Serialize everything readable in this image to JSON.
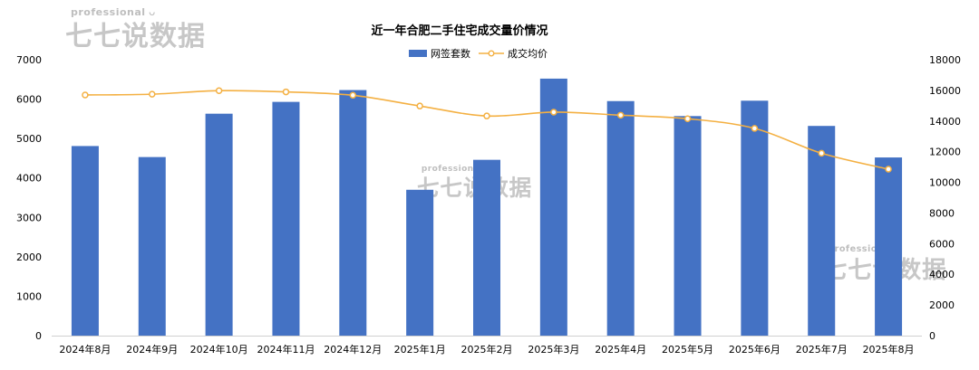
{
  "watermark": {
    "top_text": "professional",
    "brand_text": "七七说数据"
  },
  "chart_data": {
    "type": "bar",
    "title": "近一年合肥二手住宅成交量价情况",
    "categories": [
      "2024年8月",
      "2024年9月",
      "2024年10月",
      "2024年11月",
      "2024年12月",
      "2025年1月",
      "2025年2月",
      "2025年3月",
      "2025年4月",
      "2025年5月",
      "2025年6月",
      "2025年7月",
      "2025年8月"
    ],
    "series": [
      {
        "name": "网签套数",
        "type": "bar",
        "axis": "left",
        "color": "#4472C4",
        "values": [
          4810,
          4530,
          5630,
          5930,
          6230,
          3700,
          4460,
          6520,
          5950,
          5570,
          5960,
          5320,
          4520
        ]
      },
      {
        "name": "成交均价",
        "type": "line",
        "axis": "right",
        "color": "#F4B042",
        "values": [
          15700,
          15750,
          15980,
          15900,
          15680,
          14980,
          14330,
          14580,
          14380,
          14150,
          13520,
          11900,
          10860
        ]
      }
    ],
    "y_left": {
      "min": 0,
      "max": 7000,
      "step": 1000,
      "ticks": [
        "0",
        "1000",
        "2000",
        "3000",
        "4000",
        "5000",
        "6000",
        "7000"
      ]
    },
    "y_right": {
      "min": 0,
      "max": 18000,
      "step": 2000,
      "ticks": [
        "0",
        "2000",
        "4000",
        "6000",
        "8000",
        "10000",
        "12000",
        "14000",
        "16000",
        "18000"
      ]
    },
    "grid": false,
    "legend_position": "top-center"
  }
}
